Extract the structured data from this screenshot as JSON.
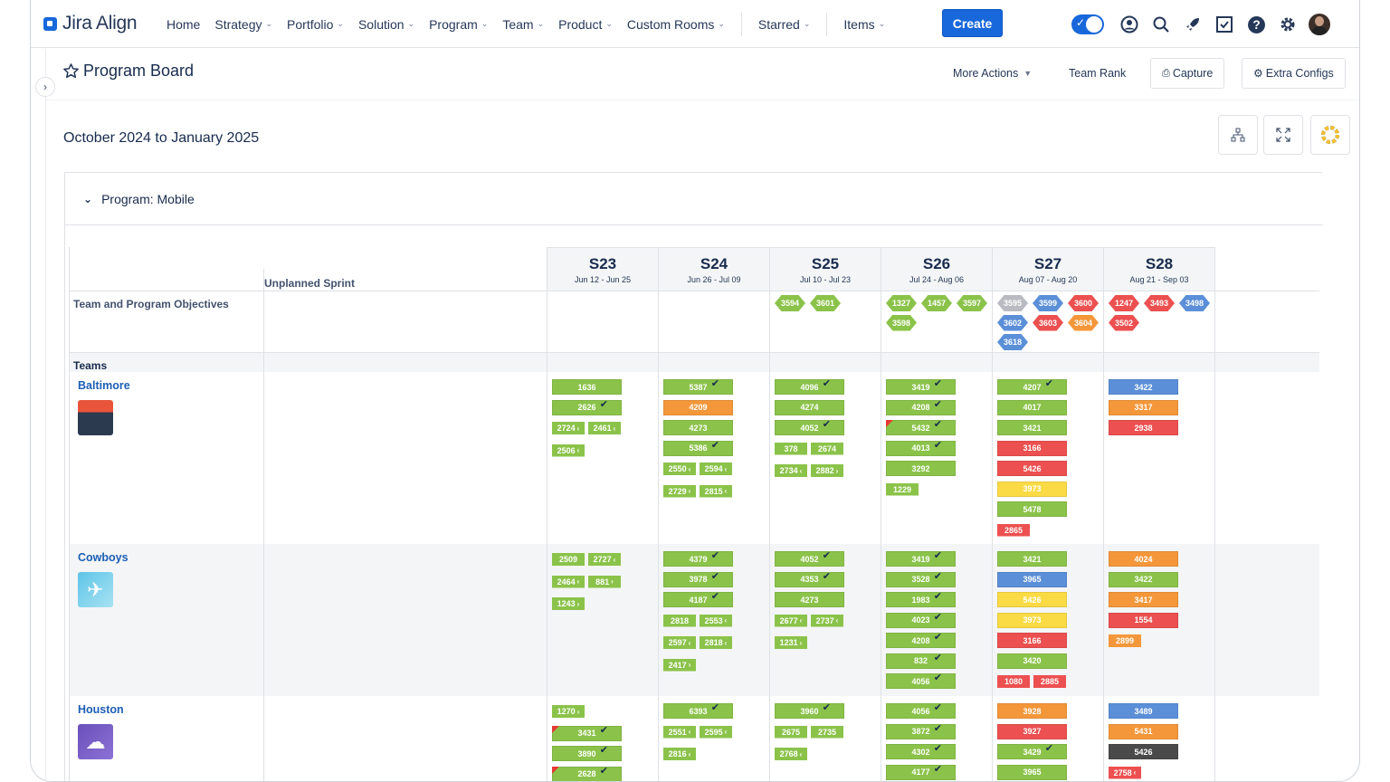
{
  "app": {
    "brand": "Jira Align"
  },
  "nav": {
    "items": [
      "Home",
      "Strategy",
      "Portfolio",
      "Solution",
      "Program",
      "Team",
      "Product",
      "Custom Rooms"
    ],
    "starred": "Starred",
    "items_menu": "Items",
    "create": "Create"
  },
  "page": {
    "title": "Program Board",
    "more_actions": "More Actions",
    "team_rank": "Team Rank",
    "capture": "Capture",
    "extra_configs": "Extra Configs",
    "date_range": "October 2024 to January 2025"
  },
  "program": {
    "label": "Program: Mobile",
    "unplanned": "Unplanned Sprint",
    "objectives_label": "Team and Program Objectives",
    "teams_label": "Teams"
  },
  "sprints": [
    {
      "name": "S23",
      "dates": "Jun 12 - Jun 25"
    },
    {
      "name": "S24",
      "dates": "Jun 26 - Jul 09"
    },
    {
      "name": "S25",
      "dates": "Jul 10 - Jul 23"
    },
    {
      "name": "S26",
      "dates": "Jul 24 - Aug 06"
    },
    {
      "name": "S27",
      "dates": "Aug 07 - Aug 20"
    },
    {
      "name": "S28",
      "dates": "Aug 21 - Sep 03"
    }
  ],
  "objectives": [
    [],
    [],
    [
      {
        "id": "3594",
        "c": "g"
      },
      {
        "id": "3601",
        "c": "g"
      }
    ],
    [
      {
        "id": "1327",
        "c": "g"
      },
      {
        "id": "1457",
        "c": "g"
      },
      {
        "id": "3597",
        "c": "g"
      },
      {
        "id": "3598",
        "c": "g"
      }
    ],
    [
      {
        "id": "3595",
        "c": "s"
      },
      {
        "id": "3599",
        "c": "b"
      },
      {
        "id": "3600",
        "c": "r"
      },
      {
        "id": "3602",
        "c": "b"
      },
      {
        "id": "3603",
        "c": "r"
      },
      {
        "id": "3604",
        "c": "o"
      },
      {
        "id": "3618",
        "c": "b"
      }
    ],
    [
      {
        "id": "1247",
        "c": "r"
      },
      {
        "id": "3493",
        "c": "r"
      },
      {
        "id": "3498",
        "c": "b"
      },
      {
        "id": "3502",
        "c": "r"
      }
    ]
  ],
  "teams": [
    {
      "name": "Baltimore",
      "icon": "dashboard-icon",
      "sprints": [
        {
          "cards": [
            {
              "id": "1636",
              "c": "g"
            },
            {
              "id": "2626",
              "c": "g",
              "chk": true
            }
          ],
          "minis": [
            [
              "2724",
              "‹"
            ],
            [
              "2461",
              "‹"
            ],
            [
              "2506",
              "‹"
            ]
          ]
        },
        {
          "cards": [
            {
              "id": "5387",
              "c": "g",
              "chk": true
            },
            {
              "id": "4209",
              "c": "o"
            },
            {
              "id": "4273",
              "c": "g"
            },
            {
              "id": "5386",
              "c": "g",
              "chk": true
            }
          ],
          "minis": [
            [
              "2550",
              "‹"
            ],
            [
              "2594",
              "‹"
            ],
            [
              "2729",
              "‹"
            ],
            [
              "2815",
              "‹"
            ]
          ]
        },
        {
          "cards": [
            {
              "id": "4096",
              "c": "g",
              "chk": true
            },
            {
              "id": "4274",
              "c": "g"
            },
            {
              "id": "4052",
              "c": "g",
              "chk": true
            }
          ],
          "minis": [
            [
              "378",
              ""
            ],
            [
              "2674",
              ""
            ],
            [
              "2734",
              "‹"
            ],
            [
              "2882",
              "›"
            ]
          ]
        },
        {
          "cards": [
            {
              "id": "3419",
              "c": "g",
              "chk": true
            },
            {
              "id": "4208",
              "c": "g",
              "chk": true
            },
            {
              "id": "5432",
              "c": "g",
              "chk": true,
              "flag": true
            },
            {
              "id": "4013",
              "c": "g",
              "chk": true
            },
            {
              "id": "3292",
              "c": "g"
            }
          ],
          "minis": [
            [
              "1229",
              ""
            ]
          ]
        },
        {
          "cards": [
            {
              "id": "4207",
              "c": "g",
              "chk": true
            },
            {
              "id": "4017",
              "c": "g"
            },
            {
              "id": "3421",
              "c": "g"
            },
            {
              "id": "3166",
              "c": "r"
            },
            {
              "id": "5426",
              "c": "r"
            },
            {
              "id": "3973",
              "c": "y"
            },
            {
              "id": "5478",
              "c": "g"
            }
          ],
          "minis": [
            [
              "2865",
              "",
              "r"
            ]
          ]
        },
        {
          "cards": [
            {
              "id": "3422",
              "c": "b"
            },
            {
              "id": "3317",
              "c": "o"
            },
            {
              "id": "2938",
              "c": "r"
            }
          ],
          "minis": []
        }
      ]
    },
    {
      "name": "Cowboys",
      "icon": "rocket-icon",
      "sprints": [
        {
          "cards": [],
          "minis": [
            [
              "2509",
              ""
            ],
            [
              "2727",
              "‹"
            ],
            [
              "2464",
              "‹"
            ],
            [
              "881",
              "›"
            ],
            [
              "1243",
              "›"
            ]
          ]
        },
        {
          "cards": [
            {
              "id": "4379",
              "c": "g",
              "chk": true
            },
            {
              "id": "3978",
              "c": "g",
              "chk": true
            },
            {
              "id": "4187",
              "c": "g",
              "chk": true
            }
          ],
          "minis": [
            [
              "2818",
              ""
            ],
            [
              "2553",
              "‹"
            ],
            [
              "2597",
              "‹"
            ],
            [
              "2818",
              "‹"
            ],
            [
              "2417",
              "›"
            ]
          ]
        },
        {
          "cards": [
            {
              "id": "4052",
              "c": "g",
              "chk": true
            },
            {
              "id": "4353",
              "c": "g",
              "chk": true
            },
            {
              "id": "4273",
              "c": "g"
            }
          ],
          "minis": [
            [
              "2677",
              "‹"
            ],
            [
              "2737",
              "‹"
            ],
            [
              "1231",
              "›"
            ]
          ]
        },
        {
          "cards": [
            {
              "id": "3419",
              "c": "g",
              "chk": true
            },
            {
              "id": "3528",
              "c": "g",
              "chk": true
            },
            {
              "id": "1983",
              "c": "g",
              "chk": true
            },
            {
              "id": "4023",
              "c": "g",
              "chk": true
            },
            {
              "id": "4208",
              "c": "g",
              "chk": true
            },
            {
              "id": "832",
              "c": "g",
              "chk": true
            },
            {
              "id": "4056",
              "c": "g",
              "chk": true
            }
          ],
          "minis": []
        },
        {
          "cards": [
            {
              "id": "3421",
              "c": "g"
            },
            {
              "id": "3965",
              "c": "b"
            },
            {
              "id": "5426",
              "c": "y"
            },
            {
              "id": "3973",
              "c": "y"
            },
            {
              "id": "3166",
              "c": "r"
            },
            {
              "id": "3420",
              "c": "g"
            }
          ],
          "minis": [
            [
              "1080",
              "",
              "r"
            ],
            [
              "2885",
              "",
              "r"
            ]
          ]
        },
        {
          "cards": [
            {
              "id": "4024",
              "c": "o"
            },
            {
              "id": "3422",
              "c": "g"
            },
            {
              "id": "3417",
              "c": "o"
            },
            {
              "id": "1554",
              "c": "r"
            }
          ],
          "minis": [
            [
              "2899",
              "",
              "o"
            ]
          ]
        }
      ]
    },
    {
      "name": "Houston",
      "icon": "storm-icon",
      "sprints": [
        {
          "cards": [
            {
              "id": "3431",
              "c": "g",
              "chk": true,
              "flag": true
            },
            {
              "id": "3890",
              "c": "g",
              "chk": true
            },
            {
              "id": "2628",
              "c": "g",
              "chk": true,
              "flag": true
            }
          ],
          "minis": [
            [
              "1270",
              "›"
            ]
          ],
          "minisFirst": true
        },
        {
          "cards": [
            {
              "id": "6393",
              "c": "g",
              "chk": true
            }
          ],
          "minis": [
            [
              "2551",
              "‹"
            ],
            [
              "2595",
              "‹"
            ],
            [
              "2816",
              "‹"
            ]
          ]
        },
        {
          "cards": [
            {
              "id": "3960",
              "c": "g",
              "chk": true
            }
          ],
          "minis": [
            [
              "2675",
              ""
            ],
            [
              "2735",
              ""
            ],
            [
              "2768",
              "‹"
            ]
          ]
        },
        {
          "cards": [
            {
              "id": "4056",
              "c": "g",
              "chk": true
            },
            {
              "id": "3872",
              "c": "g",
              "chk": true
            },
            {
              "id": "4302",
              "c": "g",
              "chk": true
            },
            {
              "id": "4177",
              "c": "g",
              "chk": true
            }
          ],
          "minis": []
        },
        {
          "cards": [
            {
              "id": "3928",
              "c": "o"
            },
            {
              "id": "3927",
              "c": "r"
            },
            {
              "id": "3429",
              "c": "g",
              "chk": true
            },
            {
              "id": "3965",
              "c": "g"
            }
          ],
          "minis": []
        },
        {
          "cards": [
            {
              "id": "3489",
              "c": "b"
            },
            {
              "id": "5431",
              "c": "o"
            },
            {
              "id": "5426",
              "c": "k"
            }
          ],
          "minis": [
            [
              "2758",
              "‹",
              "r"
            ]
          ]
        }
      ]
    }
  ]
}
